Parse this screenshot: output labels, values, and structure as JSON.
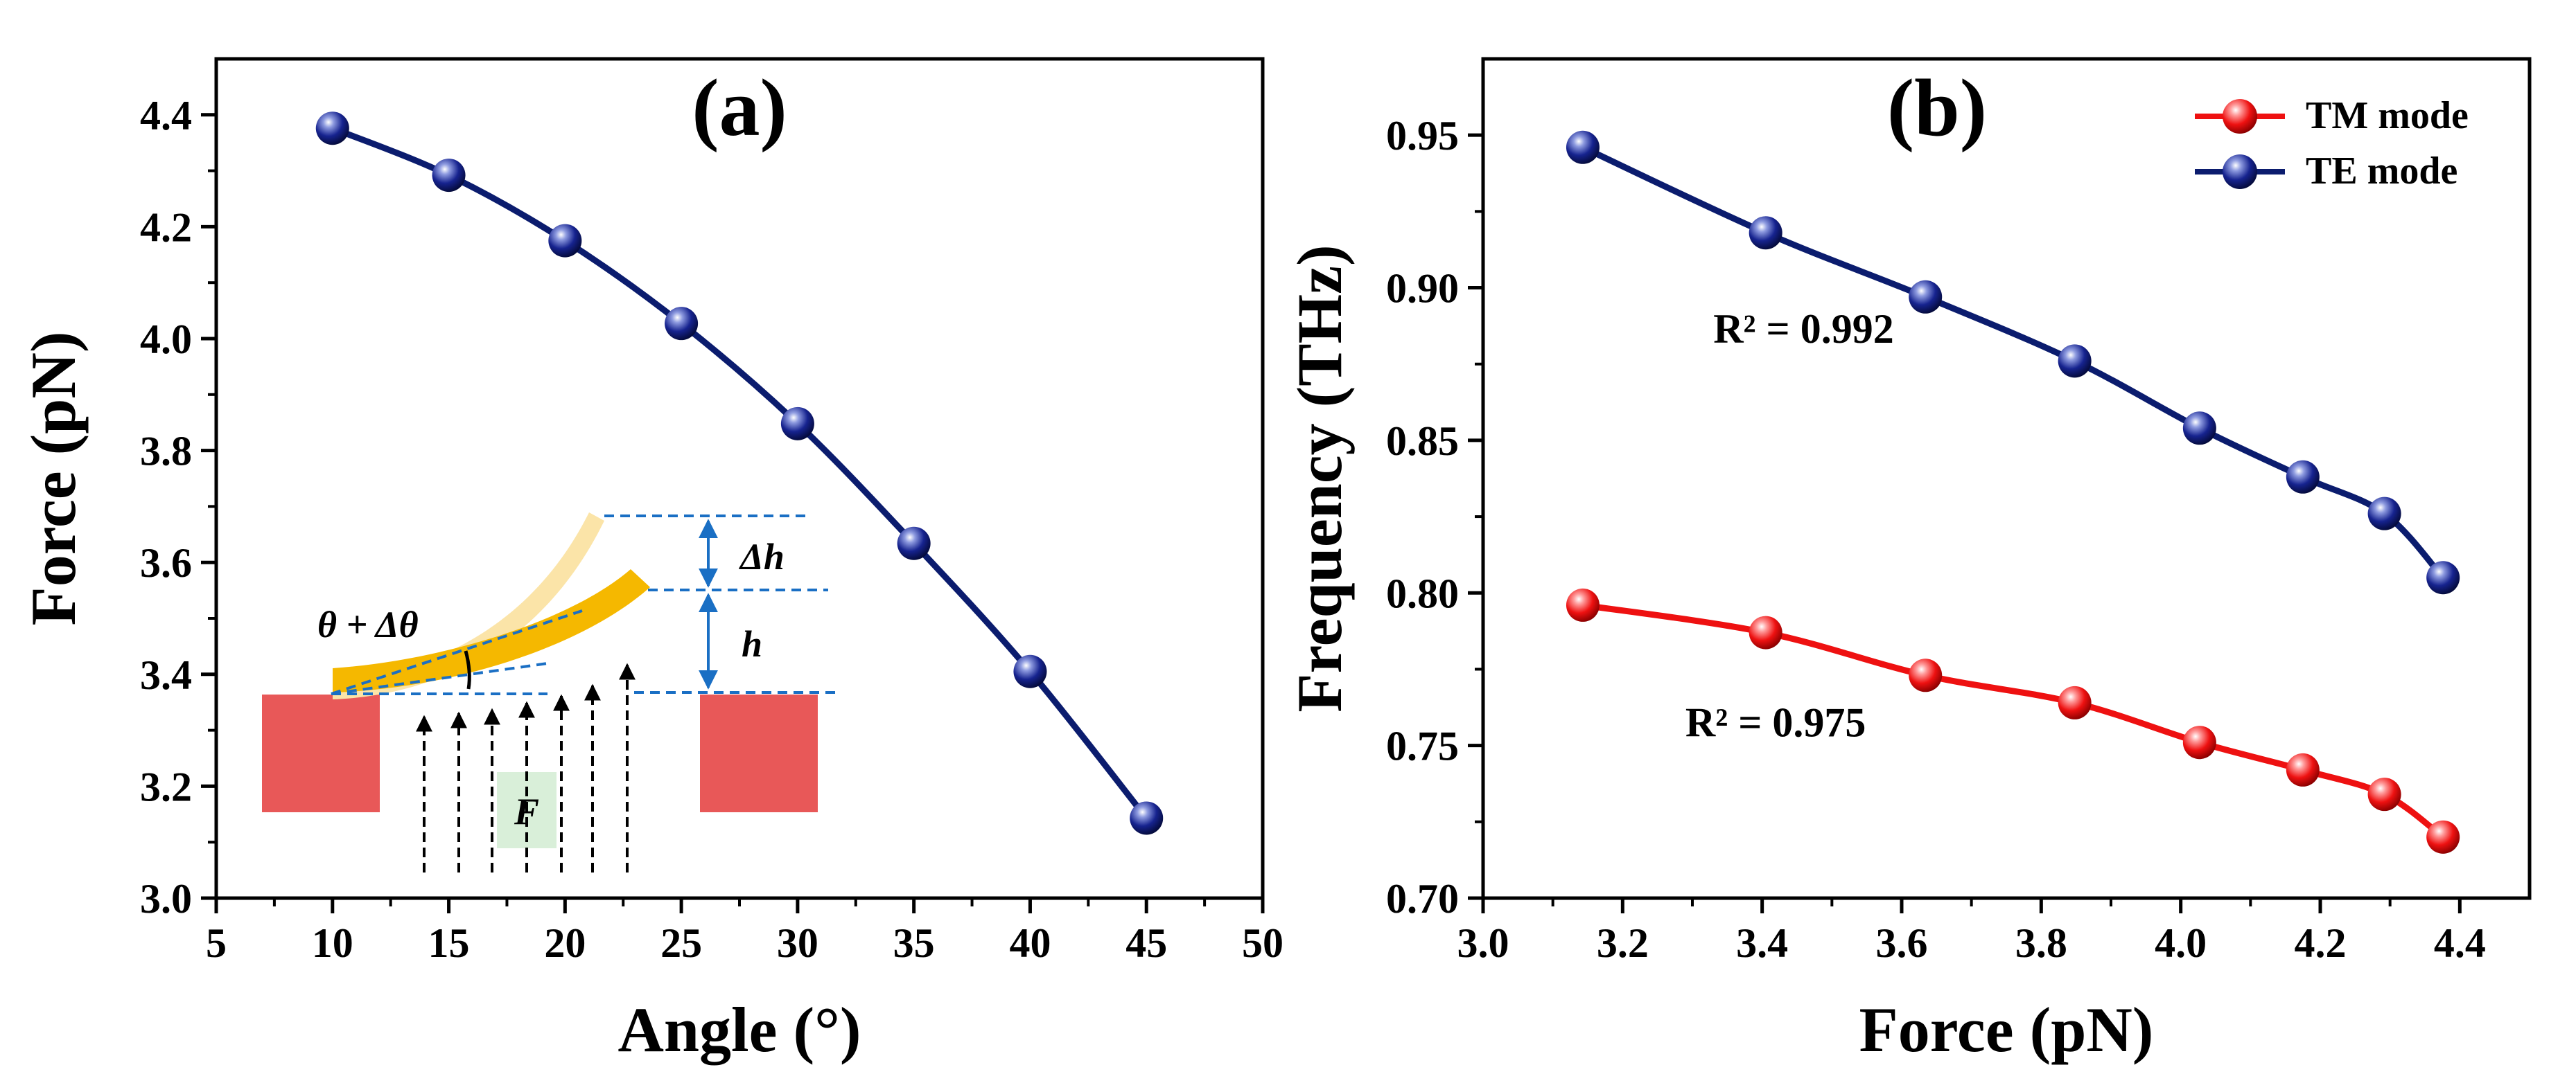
{
  "chart_data": [
    {
      "type": "line",
      "panel_label": "(a)",
      "xlabel": "Angle (°)",
      "ylabel": "Force (pN)",
      "xlim": [
        5,
        50
      ],
      "ylim": [
        3.0,
        4.5
      ],
      "x_ticks": [
        "5",
        "10",
        "15",
        "20",
        "25",
        "30",
        "35",
        "40",
        "45",
        "50"
      ],
      "y_ticks": [
        "3.0",
        "3.2",
        "3.4",
        "3.6",
        "3.8",
        "4.0",
        "4.2",
        "4.4"
      ],
      "series": [
        {
          "color": "#0b1c6e",
          "x": [
            10,
            15,
            20,
            25,
            30,
            35,
            40,
            45
          ],
          "y": [
            4.376,
            4.292,
            4.175,
            4.027,
            3.848,
            3.634,
            3.405,
            3.143
          ]
        }
      ],
      "grid": false,
      "inset": {
        "angle_label": "θ + Δθ",
        "delta_h_label": "Δh",
        "h_label": "h",
        "force_label": "F",
        "colors": {
          "support": "#e85858",
          "beam": "#f5b800",
          "beam_ghost": "#fbe4a8",
          "guide": "#1a6fc4",
          "force_box": "#d9efd9"
        }
      }
    },
    {
      "type": "line",
      "panel_label": "(b)",
      "xlabel": "Force (pN)",
      "ylabel": "Frequency (THz)",
      "xlim": [
        3.0,
        4.5
      ],
      "ylim": [
        0.7,
        0.975
      ],
      "x_ticks": [
        "3.0",
        "3.2",
        "3.4",
        "3.6",
        "3.8",
        "4.0",
        "4.2",
        "4.4"
      ],
      "y_ticks": [
        "0.70",
        "0.75",
        "0.80",
        "0.85",
        "0.90",
        "0.95"
      ],
      "legend_position": "top-right",
      "series": [
        {
          "name": "TM mode",
          "color": "#ee1111",
          "x": [
            3.143,
            3.405,
            3.634,
            3.848,
            4.027,
            4.175,
            4.292,
            4.376
          ],
          "y": [
            0.796,
            0.787,
            0.773,
            0.764,
            0.751,
            0.742,
            0.734,
            0.72
          ]
        },
        {
          "name": "TE mode",
          "color": "#0b1c6e",
          "x": [
            3.143,
            3.405,
            3.634,
            3.848,
            4.027,
            4.175,
            4.292,
            4.376
          ],
          "y": [
            0.946,
            0.918,
            0.897,
            0.876,
            0.854,
            0.838,
            0.826,
            0.805
          ]
        }
      ],
      "annotations": [
        {
          "text": "R² = 0.992",
          "x": 3.33,
          "y": 0.882
        },
        {
          "text": "R² = 0.975",
          "x": 3.29,
          "y": 0.753
        }
      ],
      "grid": false
    }
  ]
}
